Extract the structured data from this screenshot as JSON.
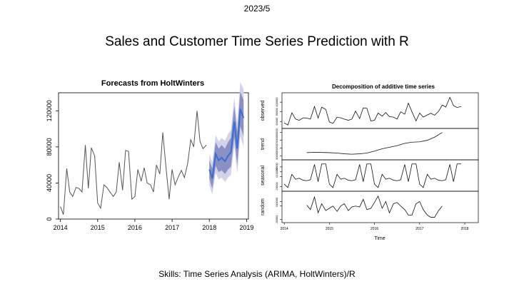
{
  "slide": {
    "date": "2023/5",
    "title": "Sales and Customer Time Series Prediction with R",
    "skills": "Skills: Time Series Analysis (ARIMA, HoltWinters)/R"
  },
  "colors": {
    "history_line": "#555555",
    "forecast_line": "#3a6fd0",
    "band_inner": "#8a8fc4",
    "band_outer": "#d2d3e8"
  },
  "chart_data": [
    {
      "type": "line",
      "title": "Forecasts from HoltWinters",
      "xlabel": "",
      "ylabel": "",
      "xlim": [
        2013.95,
        2019.05
      ],
      "ylim": [
        0,
        140000
      ],
      "x_ticks": [
        2014,
        2015,
        2016,
        2017,
        2018,
        2019
      ],
      "x_tick_labels": [
        "2014",
        "2015",
        "2016",
        "2017",
        "2018",
        "2019"
      ],
      "y_ticks": [
        0,
        40000,
        80000,
        120000
      ],
      "y_tick_labels": [
        "0",
        "40000",
        "80000",
        "120000"
      ],
      "grid": false,
      "series": [
        {
          "role": "observed",
          "x": [
            2014.0,
            2014.08,
            2014.17,
            2014.25,
            2014.33,
            2014.42,
            2014.5,
            2014.58,
            2014.67,
            2014.75,
            2014.83,
            2014.92,
            2015.0,
            2015.08,
            2015.17,
            2015.25,
            2015.33,
            2015.42,
            2015.5,
            2015.58,
            2015.67,
            2015.75,
            2015.83,
            2015.92,
            2016.0,
            2016.08,
            2016.17,
            2016.25,
            2016.33,
            2016.42,
            2016.5,
            2016.58,
            2016.67,
            2016.75,
            2016.83,
            2016.92,
            2017.0,
            2017.08,
            2017.17,
            2017.25,
            2017.33,
            2017.42,
            2017.5,
            2017.58,
            2017.67,
            2017.75,
            2017.83,
            2017.92
          ],
          "y": [
            14000,
            5000,
            56000,
            30000,
            25000,
            35000,
            34000,
            30000,
            82000,
            34000,
            79000,
            70000,
            18000,
            12000,
            38000,
            35000,
            30000,
            25000,
            30000,
            63000,
            32000,
            76000,
            75000,
            22000,
            25000,
            55000,
            42000,
            57000,
            40000,
            38000,
            30000,
            60000,
            50000,
            96000,
            60000,
            22000,
            55000,
            38000,
            47000,
            54000,
            46000,
            62000,
            88000,
            80000,
            120000,
            86000,
            78000,
            82000
          ]
        },
        {
          "role": "forecast",
          "x": [
            2018.0,
            2018.08,
            2018.17,
            2018.25,
            2018.33,
            2018.42,
            2018.5,
            2018.58,
            2018.67,
            2018.75,
            2018.83,
            2018.92
          ],
          "y": [
            55000,
            45000,
            72000,
            65000,
            68000,
            64000,
            70000,
            74000,
            108000,
            78000,
            122000,
            112000
          ],
          "lo80": [
            45000,
            34000,
            59000,
            52000,
            54000,
            50000,
            55000,
            58000,
            91000,
            60000,
            103000,
            92000
          ],
          "hi80": [
            65000,
            56000,
            85000,
            78000,
            82000,
            78000,
            85000,
            90000,
            125000,
            96000,
            141000,
            132000
          ],
          "lo95": [
            38000,
            27000,
            51000,
            44000,
            46000,
            41000,
            46000,
            49000,
            81000,
            50000,
            92000,
            80000
          ],
          "hi95": [
            72000,
            63000,
            93000,
            86000,
            90000,
            87000,
            94000,
            99000,
            135000,
            106000,
            152000,
            144000
          ]
        }
      ]
    },
    {
      "type": "line",
      "title": "Decomposition of additive time series",
      "xlabel": "Time",
      "x_ticks": [
        2014,
        2015,
        2016,
        2017,
        2018
      ],
      "x_tick_labels": [
        "2014",
        "2015",
        "2016",
        "2017",
        "2018"
      ],
      "xlim": [
        2013.95,
        2018.3
      ],
      "panels": [
        {
          "name": "observed",
          "ylim": [
            0,
            130000
          ],
          "y_tick_labels": [
            "20000",
            "60000",
            "100000"
          ],
          "y_tick_values": [
            20000,
            60000,
            100000
          ],
          "x": [
            2014.0,
            2014.08,
            2014.17,
            2014.25,
            2014.33,
            2014.42,
            2014.5,
            2014.58,
            2014.67,
            2014.75,
            2014.83,
            2014.92,
            2015.0,
            2015.08,
            2015.17,
            2015.25,
            2015.33,
            2015.42,
            2015.5,
            2015.58,
            2015.67,
            2015.75,
            2015.83,
            2015.92,
            2016.0,
            2016.08,
            2016.17,
            2016.25,
            2016.33,
            2016.42,
            2016.5,
            2016.58,
            2016.67,
            2016.75,
            2016.83,
            2016.92,
            2017.0,
            2017.08,
            2017.17,
            2017.25,
            2017.33,
            2017.42,
            2017.5,
            2017.58,
            2017.67,
            2017.75,
            2017.83,
            2017.92
          ],
          "y": [
            14000,
            5000,
            56000,
            30000,
            25000,
            35000,
            34000,
            30000,
            82000,
            34000,
            79000,
            70000,
            18000,
            12000,
            38000,
            35000,
            30000,
            25000,
            30000,
            63000,
            32000,
            76000,
            75000,
            22000,
            25000,
            55000,
            42000,
            57000,
            40000,
            38000,
            30000,
            60000,
            50000,
            96000,
            60000,
            22000,
            55000,
            38000,
            47000,
            54000,
            46000,
            62000,
            88000,
            80000,
            120000,
            86000,
            78000,
            82000
          ]
        },
        {
          "name": "trend",
          "ylim": [
            25000,
            95000
          ],
          "y_tick_labels": [
            "30000",
            "50000",
            "70000",
            "90000"
          ],
          "y_tick_values": [
            30000,
            50000,
            70000,
            90000
          ],
          "x": [
            2014.5,
            2014.67,
            2014.83,
            2015.0,
            2015.17,
            2015.33,
            2015.5,
            2015.67,
            2015.83,
            2016.0,
            2016.17,
            2016.33,
            2016.5,
            2016.67,
            2016.83,
            2017.0,
            2017.17,
            2017.33,
            2017.5
          ],
          "y": [
            38000,
            39000,
            38500,
            38000,
            37000,
            35000,
            34000,
            35000,
            37000,
            42000,
            48000,
            52000,
            56000,
            62000,
            65000,
            66000,
            70000,
            78000,
            90000
          ]
        },
        {
          "name": "seasonal",
          "ylim": [
            -25000,
            30000
          ],
          "y_tick_labels": [
            "-20000",
            "0",
            "10000",
            "20000"
          ],
          "y_tick_values": [
            -20000,
            0,
            10000,
            20000
          ],
          "x": [
            2014.0,
            2014.08,
            2014.17,
            2014.25,
            2014.33,
            2014.42,
            2014.5,
            2014.58,
            2014.67,
            2014.75,
            2014.83,
            2014.92,
            2015.0,
            2015.08,
            2015.17,
            2015.25,
            2015.33,
            2015.42,
            2015.5,
            2015.58,
            2015.67,
            2015.75,
            2015.83,
            2015.92,
            2016.0,
            2016.08,
            2016.17,
            2016.25,
            2016.33,
            2016.42,
            2016.5,
            2016.58,
            2016.67,
            2016.75,
            2016.83,
            2016.92,
            2017.0,
            2017.08,
            2017.17,
            2017.25,
            2017.33,
            2017.42,
            2017.5,
            2017.58,
            2017.67,
            2017.75,
            2017.83,
            2017.92
          ],
          "y": [
            -15000,
            -22000,
            5000,
            -5000,
            -3000,
            -7000,
            -8000,
            -6000,
            25000,
            -10000,
            26000,
            26000,
            -15000,
            -22000,
            5000,
            -5000,
            -3000,
            -7000,
            -8000,
            -6000,
            25000,
            -10000,
            26000,
            26000,
            -15000,
            -22000,
            5000,
            -5000,
            -3000,
            -7000,
            -8000,
            -6000,
            25000,
            -10000,
            26000,
            26000,
            -15000,
            -22000,
            5000,
            -5000,
            -3000,
            -7000,
            -8000,
            -6000,
            25000,
            -10000,
            26000,
            26000
          ]
        },
        {
          "name": "random",
          "ylim": [
            -32000,
            28000
          ],
          "y_tick_labels": [
            "-30000",
            "0",
            "10000"
          ],
          "y_tick_values": [
            -30000,
            0,
            10000
          ],
          "x": [
            2014.5,
            2014.58,
            2014.67,
            2014.75,
            2014.83,
            2014.92,
            2015.0,
            2015.08,
            2015.17,
            2015.25,
            2015.33,
            2015.42,
            2015.5,
            2015.58,
            2015.67,
            2015.75,
            2015.83,
            2015.92,
            2016.0,
            2016.08,
            2016.17,
            2016.25,
            2016.33,
            2016.42,
            2016.5,
            2016.58,
            2016.67,
            2016.75,
            2016.83,
            2016.92,
            2017.0,
            2017.08,
            2017.17,
            2017.25,
            2017.33,
            2017.42,
            2017.5
          ],
          "y": [
            2000,
            -8000,
            20000,
            -15000,
            5000,
            -10000,
            -5000,
            0,
            -12000,
            0,
            5000,
            -10000,
            -2000,
            0,
            -2000,
            15000,
            -8000,
            -5000,
            8000,
            22000,
            -5000,
            10000,
            -15000,
            5000,
            8000,
            0,
            -8000,
            -20000,
            -20000,
            5000,
            10000,
            -8000,
            -20000,
            -25000,
            -25000,
            -10000,
            0
          ]
        }
      ]
    }
  ]
}
